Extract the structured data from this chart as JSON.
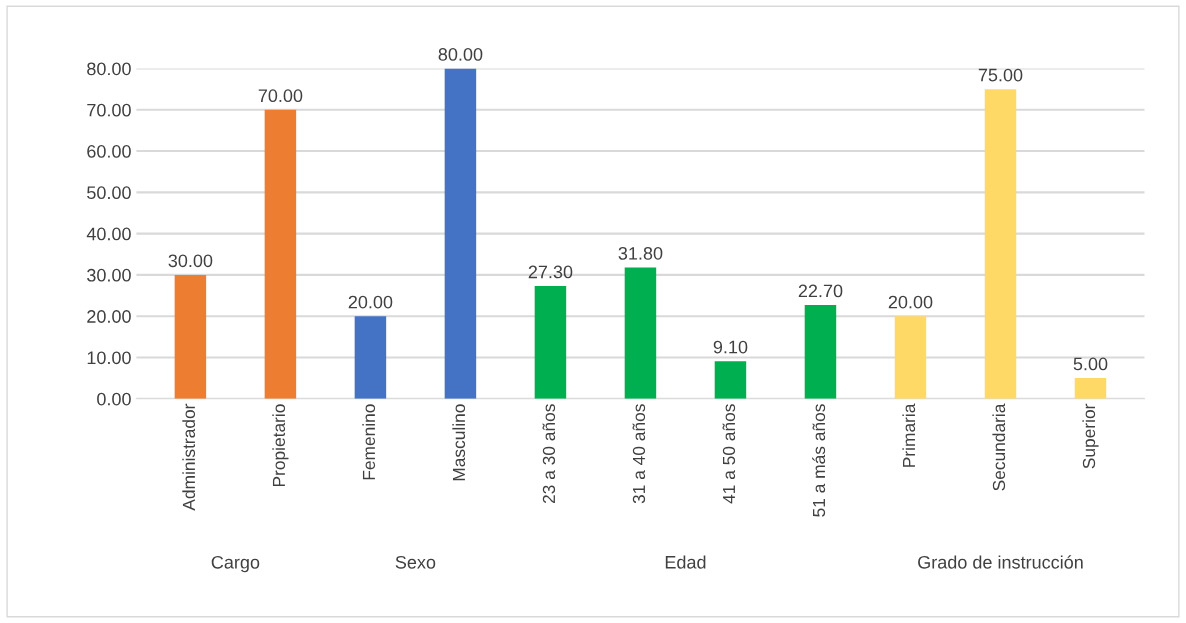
{
  "chart_data": {
    "type": "bar",
    "categories": [
      "Administrador",
      "Propietario",
      "Femenino",
      "Masculino",
      "23 a 30 años",
      "31 a 40 años",
      "41 a 50 años",
      "51 a más años",
      "Primaria",
      "Secundaria",
      "Superior"
    ],
    "values": [
      30.0,
      70.0,
      20.0,
      80.0,
      27.3,
      31.8,
      9.1,
      22.7,
      20.0,
      75.0,
      5.0
    ],
    "value_labels": [
      "30.00",
      "70.00",
      "20.00",
      "80.00",
      "27.30",
      "31.80",
      "9.10",
      "22.70",
      "20.00",
      "75.00",
      "5.00"
    ],
    "colors": [
      "#ed7d31",
      "#ed7d31",
      "#4472c4",
      "#4472c4",
      "#00b050",
      "#00b050",
      "#00b050",
      "#00b050",
      "#ffd966",
      "#ffd966",
      "#ffd966"
    ],
    "annotations": [
      "Cargo",
      "Sexo",
      "Edad",
      "Grado de instrucción"
    ],
    "ylim": [
      0,
      80
    ],
    "yticks": [
      {
        "value": 0,
        "label": "0.00"
      },
      {
        "value": 10,
        "label": "10.00"
      },
      {
        "value": 20,
        "label": "20.00"
      },
      {
        "value": 30,
        "label": "30.00"
      },
      {
        "value": 40,
        "label": "40.00"
      },
      {
        "value": 50,
        "label": "50.00"
      },
      {
        "value": 60,
        "label": "60.00"
      },
      {
        "value": 70,
        "label": "70.00"
      },
      {
        "value": 80,
        "label": "80.00"
      }
    ],
    "grid": "y",
    "legend": false
  }
}
